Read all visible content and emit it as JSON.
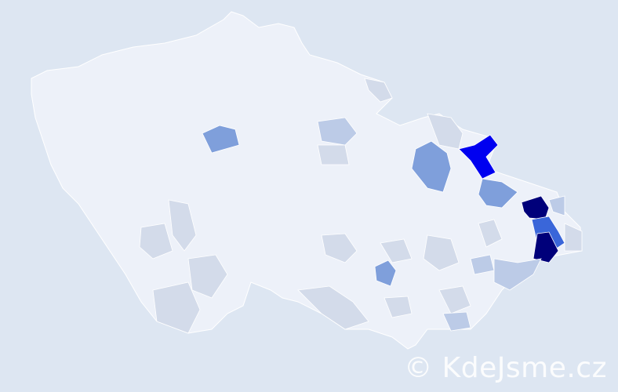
{
  "watermark": "© KdeJsme.cz",
  "colors": {
    "background": "#dde6f2",
    "base": "#edf1f9",
    "border": "#ffffff",
    "level_light": "#d3dbea",
    "level_mid_light": "#bccbe7",
    "level_mid": "#7f9fdb",
    "level_high": "#3a66d9",
    "level_very_high": "#0000f0",
    "level_max": "#00007a"
  }
}
